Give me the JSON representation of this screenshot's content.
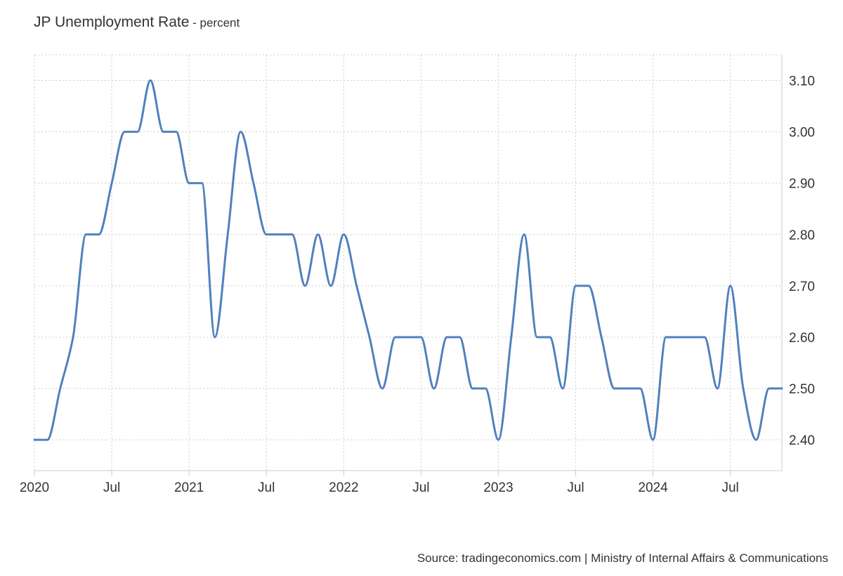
{
  "title": "JP Unemployment Rate",
  "title_suffix": " - percent",
  "source": "Source: tradingeconomics.com | Ministry of Internal Affairs & Communications",
  "colors": {
    "line": "#4f81bd",
    "grid": "#cccccc",
    "axis": "#cccccc",
    "text": "#333333"
  },
  "chart_data": {
    "type": "line",
    "title": "JP Unemployment Rate",
    "subtitle": "percent",
    "xlabel": "",
    "ylabel": "",
    "y_axis_side": "right",
    "grid": true,
    "ylim": [
      2.34,
      3.15
    ],
    "xlim": [
      "2020-01",
      "2024-11"
    ],
    "yticks": [
      2.4,
      2.5,
      2.6,
      2.7,
      2.8,
      2.9,
      3.0,
      3.1
    ],
    "ytick_labels": [
      "2.40",
      "2.50",
      "2.60",
      "2.70",
      "2.80",
      "2.90",
      "3.00",
      "3.10"
    ],
    "xticks": [
      "2020-01",
      "2020-07",
      "2021-01",
      "2021-07",
      "2022-01",
      "2022-07",
      "2023-01",
      "2023-07",
      "2024-01",
      "2024-07"
    ],
    "xtick_labels": [
      "2020",
      "Jul",
      "2021",
      "Jul",
      "2022",
      "Jul",
      "2023",
      "Jul",
      "2024",
      "Jul"
    ],
    "x": [
      "2020-01",
      "2020-02",
      "2020-03",
      "2020-04",
      "2020-05",
      "2020-06",
      "2020-07",
      "2020-08",
      "2020-09",
      "2020-10",
      "2020-11",
      "2020-12",
      "2021-01",
      "2021-02",
      "2021-03",
      "2021-04",
      "2021-05",
      "2021-06",
      "2021-07",
      "2021-08",
      "2021-09",
      "2021-10",
      "2021-11",
      "2021-12",
      "2022-01",
      "2022-02",
      "2022-03",
      "2022-04",
      "2022-05",
      "2022-06",
      "2022-07",
      "2022-08",
      "2022-09",
      "2022-10",
      "2022-11",
      "2022-12",
      "2023-01",
      "2023-02",
      "2023-03",
      "2023-04",
      "2023-05",
      "2023-06",
      "2023-07",
      "2023-08",
      "2023-09",
      "2023-10",
      "2023-11",
      "2023-12",
      "2024-01",
      "2024-02",
      "2024-03",
      "2024-04",
      "2024-05",
      "2024-06",
      "2024-07",
      "2024-08",
      "2024-09",
      "2024-10",
      "2024-11"
    ],
    "series": [
      {
        "values": [
          2.4,
          2.4,
          2.5,
          2.6,
          2.8,
          2.8,
          2.9,
          3.0,
          3.0,
          3.1,
          3.0,
          3.0,
          2.9,
          2.9,
          2.6,
          2.8,
          3.0,
          2.9,
          2.8,
          2.8,
          2.8,
          2.7,
          2.8,
          2.7,
          2.8,
          2.7,
          2.6,
          2.5,
          2.6,
          2.6,
          2.6,
          2.5,
          2.6,
          2.6,
          2.5,
          2.5,
          2.4,
          2.6,
          2.8,
          2.6,
          2.6,
          2.5,
          2.7,
          2.7,
          2.6,
          2.5,
          2.5,
          2.5,
          2.4,
          2.6,
          2.6,
          2.6,
          2.6,
          2.5,
          2.7,
          2.5,
          2.4,
          2.5,
          2.5
        ]
      }
    ]
  }
}
